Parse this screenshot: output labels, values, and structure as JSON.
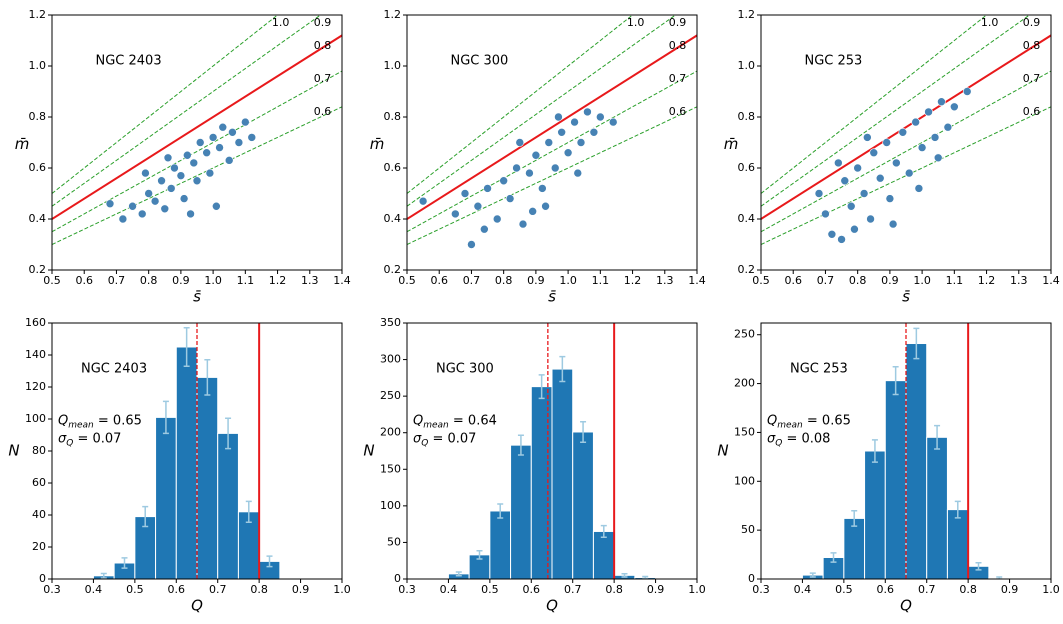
{
  "chart_data": [
    {
      "type": "scatter",
      "title": "NGC 2403",
      "x_label": "s̄",
      "y_label": "m̄",
      "xlim": [
        0.5,
        1.4
      ],
      "xticks": [
        0.5,
        0.6,
        0.7,
        0.8,
        0.9,
        {
          "value": 1,
          "label": "1.0"
        },
        1.1,
        1.2,
        1.3,
        1.4
      ],
      "ylim": [
        0.2,
        1.2
      ],
      "yticks": [
        0.2,
        0.4,
        0.6,
        0.8,
        {
          "value": 1,
          "label": "1.0"
        },
        1.2
      ],
      "ref_lines": [
        {
          "value": 1,
          "label": "1.0",
          "color": "#2ca02c",
          "dashed": true
        },
        {
          "value": 0.9,
          "label": "0.9",
          "color": "#2ca02c",
          "dashed": true
        },
        {
          "value": 0.8,
          "label": "0.8",
          "color": "#e8191b",
          "dashed": false
        },
        {
          "value": 0.7,
          "label": "0.7",
          "color": "#2ca02c",
          "dashed": true
        },
        {
          "value": 0.6,
          "label": "0.6",
          "color": "#2ca02c",
          "dashed": true
        }
      ],
      "points": {
        "color": "#4682b4",
        "x": [
          0.72,
          0.75,
          0.78,
          0.8,
          0.82,
          0.84,
          0.85,
          0.87,
          0.88,
          0.9,
          0.91,
          0.92,
          0.94,
          0.95,
          0.96,
          0.98,
          0.99,
          1.0,
          1.02,
          1.03,
          1.05,
          1.06,
          1.08,
          1.1,
          1.12,
          0.68,
          0.86,
          0.93,
          1.01,
          0.79
        ],
        "y": [
          0.4,
          0.45,
          0.42,
          0.5,
          0.47,
          0.55,
          0.44,
          0.52,
          0.6,
          0.57,
          0.48,
          0.65,
          0.62,
          0.55,
          0.7,
          0.66,
          0.58,
          0.72,
          0.68,
          0.76,
          0.63,
          0.74,
          0.7,
          0.78,
          0.72,
          0.46,
          0.64,
          0.42,
          0.45,
          0.58
        ]
      }
    },
    {
      "type": "scatter",
      "title": "NGC 300",
      "x_label": "s̄",
      "y_label": "m̄",
      "xlim": [
        0.5,
        1.4
      ],
      "xticks": [
        0.5,
        0.6,
        0.7,
        0.8,
        0.9,
        {
          "value": 1,
          "label": "1.0"
        },
        1.1,
        1.2,
        1.3,
        1.4
      ],
      "ylim": [
        0.2,
        1.2
      ],
      "yticks": [
        0.2,
        0.4,
        0.6,
        0.8,
        {
          "value": 1,
          "label": "1.0"
        },
        1.2
      ],
      "ref_lines": [
        {
          "value": 1,
          "label": "1.0",
          "color": "#2ca02c",
          "dashed": true
        },
        {
          "value": 0.9,
          "label": "0.9",
          "color": "#2ca02c",
          "dashed": true
        },
        {
          "value": 0.8,
          "label": "0.8",
          "color": "#e8191b",
          "dashed": false
        },
        {
          "value": 0.7,
          "label": "0.7",
          "color": "#2ca02c",
          "dashed": true
        },
        {
          "value": 0.6,
          "label": "0.6",
          "color": "#2ca02c",
          "dashed": true
        }
      ],
      "points": {
        "color": "#4682b4",
        "x": [
          0.55,
          0.65,
          0.7,
          0.72,
          0.75,
          0.78,
          0.8,
          0.82,
          0.84,
          0.86,
          0.88,
          0.9,
          0.92,
          0.94,
          0.96,
          0.98,
          1.0,
          1.02,
          1.04,
          1.06,
          1.08,
          1.1,
          1.14,
          0.74,
          0.85,
          0.93,
          1.03,
          0.68,
          0.97,
          0.89
        ],
        "y": [
          0.47,
          0.42,
          0.3,
          0.45,
          0.52,
          0.4,
          0.55,
          0.48,
          0.6,
          0.38,
          0.58,
          0.65,
          0.52,
          0.7,
          0.6,
          0.74,
          0.66,
          0.78,
          0.7,
          0.82,
          0.74,
          0.8,
          0.78,
          0.36,
          0.7,
          0.45,
          0.58,
          0.5,
          0.8,
          0.43
        ]
      }
    },
    {
      "type": "scatter",
      "title": "NGC 253",
      "x_label": "s̄",
      "y_label": "m̄",
      "xlim": [
        0.5,
        1.4
      ],
      "xticks": [
        0.5,
        0.6,
        0.7,
        0.8,
        0.9,
        {
          "value": 1,
          "label": "1.0"
        },
        1.1,
        1.2,
        1.3,
        1.4
      ],
      "ylim": [
        0.2,
        1.2
      ],
      "yticks": [
        0.2,
        0.4,
        0.6,
        0.8,
        {
          "value": 1,
          "label": "1.0"
        },
        1.2
      ],
      "ref_lines": [
        {
          "value": 1,
          "label": "1.0",
          "color": "#2ca02c",
          "dashed": true
        },
        {
          "value": 0.9,
          "label": "0.9",
          "color": "#2ca02c",
          "dashed": true
        },
        {
          "value": 0.8,
          "label": "0.8",
          "color": "#e8191b",
          "dashed": false
        },
        {
          "value": 0.7,
          "label": "0.7",
          "color": "#2ca02c",
          "dashed": true
        },
        {
          "value": 0.6,
          "label": "0.6",
          "color": "#2ca02c",
          "dashed": true
        }
      ],
      "points": {
        "color": "#4682b4",
        "x": [
          0.68,
          0.7,
          0.72,
          0.75,
          0.76,
          0.78,
          0.8,
          0.82,
          0.84,
          0.85,
          0.87,
          0.89,
          0.9,
          0.92,
          0.94,
          0.96,
          0.98,
          1.0,
          1.02,
          1.04,
          1.06,
          1.08,
          1.1,
          1.14,
          0.74,
          0.83,
          0.91,
          0.99,
          1.05,
          0.79
        ],
        "y": [
          0.5,
          0.42,
          0.34,
          0.32,
          0.55,
          0.45,
          0.6,
          0.5,
          0.4,
          0.66,
          0.56,
          0.7,
          0.48,
          0.62,
          0.74,
          0.58,
          0.78,
          0.68,
          0.82,
          0.72,
          0.86,
          0.76,
          0.84,
          0.9,
          0.62,
          0.72,
          0.38,
          0.52,
          0.64,
          0.36
        ]
      }
    },
    {
      "type": "histogram",
      "title": "NGC 2403",
      "x_label": "Q",
      "y_label": "N",
      "color": "#1f77b4",
      "xlim": [
        0.3,
        1.0
      ],
      "xticks": [
        0.3,
        0.4,
        0.5,
        0.6,
        0.7,
        0.8,
        0.9,
        {
          "value": 1,
          "label": "1.0"
        }
      ],
      "ylim": [
        0,
        160
      ],
      "yticks": [
        0,
        20,
        40,
        60,
        80,
        100,
        120,
        140,
        160
      ],
      "bins": [
        0.4,
        0.45,
        0.5,
        0.55,
        0.6,
        0.65,
        0.7,
        0.75,
        0.8,
        0.85
      ],
      "values": [
        2,
        10,
        39,
        101,
        145,
        126,
        91,
        42,
        11
      ],
      "errors": [
        1.4,
        3.2,
        6.2,
        10,
        12,
        11,
        9.5,
        6.5,
        3.3
      ],
      "mean": 0.65,
      "threshold": 0.8,
      "stats": [
        {
          "symbol": "Q",
          "sub": "mean",
          "text": " = 0.65"
        },
        {
          "symbol": "σ",
          "sub": "Q",
          "text": " = 0.07"
        }
      ]
    },
    {
      "type": "histogram",
      "title": "NGC 300",
      "x_label": "Q",
      "y_label": "N",
      "color": "#1f77b4",
      "xlim": [
        0.3,
        1.0
      ],
      "xticks": [
        0.3,
        0.4,
        0.5,
        0.6,
        0.7,
        0.8,
        0.9,
        {
          "value": 1,
          "label": "1.0"
        }
      ],
      "ylim": [
        0,
        350
      ],
      "yticks": [
        0,
        50,
        100,
        150,
        200,
        250,
        300,
        350
      ],
      "bins": [
        0.4,
        0.45,
        0.5,
        0.55,
        0.6,
        0.65,
        0.7,
        0.75,
        0.8,
        0.85,
        0.9
      ],
      "values": [
        7,
        33,
        93,
        183,
        263,
        287,
        201,
        65,
        5,
        2
      ],
      "errors": [
        2.6,
        5.7,
        9.6,
        13.5,
        16,
        17,
        14,
        8,
        2.2,
        1.4
      ],
      "mean": 0.64,
      "threshold": 0.8,
      "stats": [
        {
          "symbol": "Q",
          "sub": "mean",
          "text": " = 0.64"
        },
        {
          "symbol": "σ",
          "sub": "Q",
          "text": " = 0.07"
        }
      ]
    },
    {
      "type": "histogram",
      "title": "NGC 253",
      "x_label": "Q",
      "y_label": "N",
      "color": "#1f77b4",
      "xlim": [
        0.3,
        1.0
      ],
      "xticks": [
        0.3,
        0.4,
        0.5,
        0.6,
        0.7,
        0.8,
        0.9,
        {
          "value": 1,
          "label": "1.0"
        }
      ],
      "ylim": [
        0,
        262
      ],
      "yticks": [
        0,
        50,
        100,
        150,
        200,
        250
      ],
      "bins": [
        0.4,
        0.45,
        0.5,
        0.55,
        0.6,
        0.65,
        0.7,
        0.75,
        0.8,
        0.85,
        0.9
      ],
      "values": [
        4,
        22,
        62,
        131,
        203,
        241,
        145,
        71,
        13,
        1
      ],
      "errors": [
        2,
        4.7,
        7.9,
        11.4,
        14.2,
        15.5,
        12,
        8.4,
        3.6,
        1
      ],
      "mean": 0.65,
      "threshold": 0.8,
      "stats": [
        {
          "symbol": "Q",
          "sub": "mean",
          "text": " = 0.65"
        },
        {
          "symbol": "σ",
          "sub": "Q",
          "text": " = 0.08"
        }
      ]
    }
  ]
}
